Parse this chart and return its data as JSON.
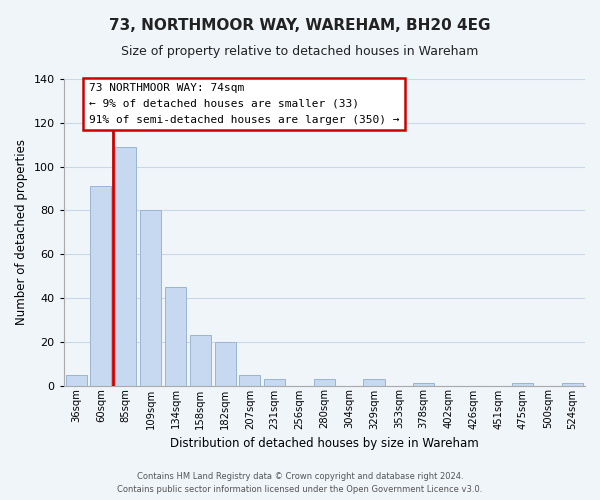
{
  "title": "73, NORTHMOOR WAY, WAREHAM, BH20 4EG",
  "subtitle": "Size of property relative to detached houses in Wareham",
  "bar_labels": [
    "36sqm",
    "60sqm",
    "85sqm",
    "109sqm",
    "134sqm",
    "158sqm",
    "182sqm",
    "207sqm",
    "231sqm",
    "256sqm",
    "280sqm",
    "304sqm",
    "329sqm",
    "353sqm",
    "378sqm",
    "402sqm",
    "426sqm",
    "451sqm",
    "475sqm",
    "500sqm",
    "524sqm"
  ],
  "bar_heights": [
    5,
    91,
    109,
    80,
    45,
    23,
    20,
    5,
    3,
    0,
    3,
    0,
    3,
    0,
    1,
    0,
    0,
    0,
    1,
    0,
    1
  ],
  "bar_color": "#c6d9f0",
  "bar_edge_color": "#9ab5d5",
  "vline_x": 1.5,
  "vline_color": "#cc0000",
  "ylim": [
    0,
    140
  ],
  "yticks": [
    0,
    20,
    40,
    60,
    80,
    100,
    120,
    140
  ],
  "ylabel": "Number of detached properties",
  "xlabel": "Distribution of detached houses by size in Wareham",
  "annotation_title": "73 NORTHMOOR WAY: 74sqm",
  "annotation_line1": "← 9% of detached houses are smaller (33)",
  "annotation_line2": "91% of semi-detached houses are larger (350) →",
  "footnote1": "Contains HM Land Registry data © Crown copyright and database right 2024.",
  "footnote2": "Contains public sector information licensed under the Open Government Licence v3.0.",
  "bg_color": "#f0f5fa",
  "plot_bg_color": "#f0f5fa",
  "grid_color": "#c8d8e8"
}
